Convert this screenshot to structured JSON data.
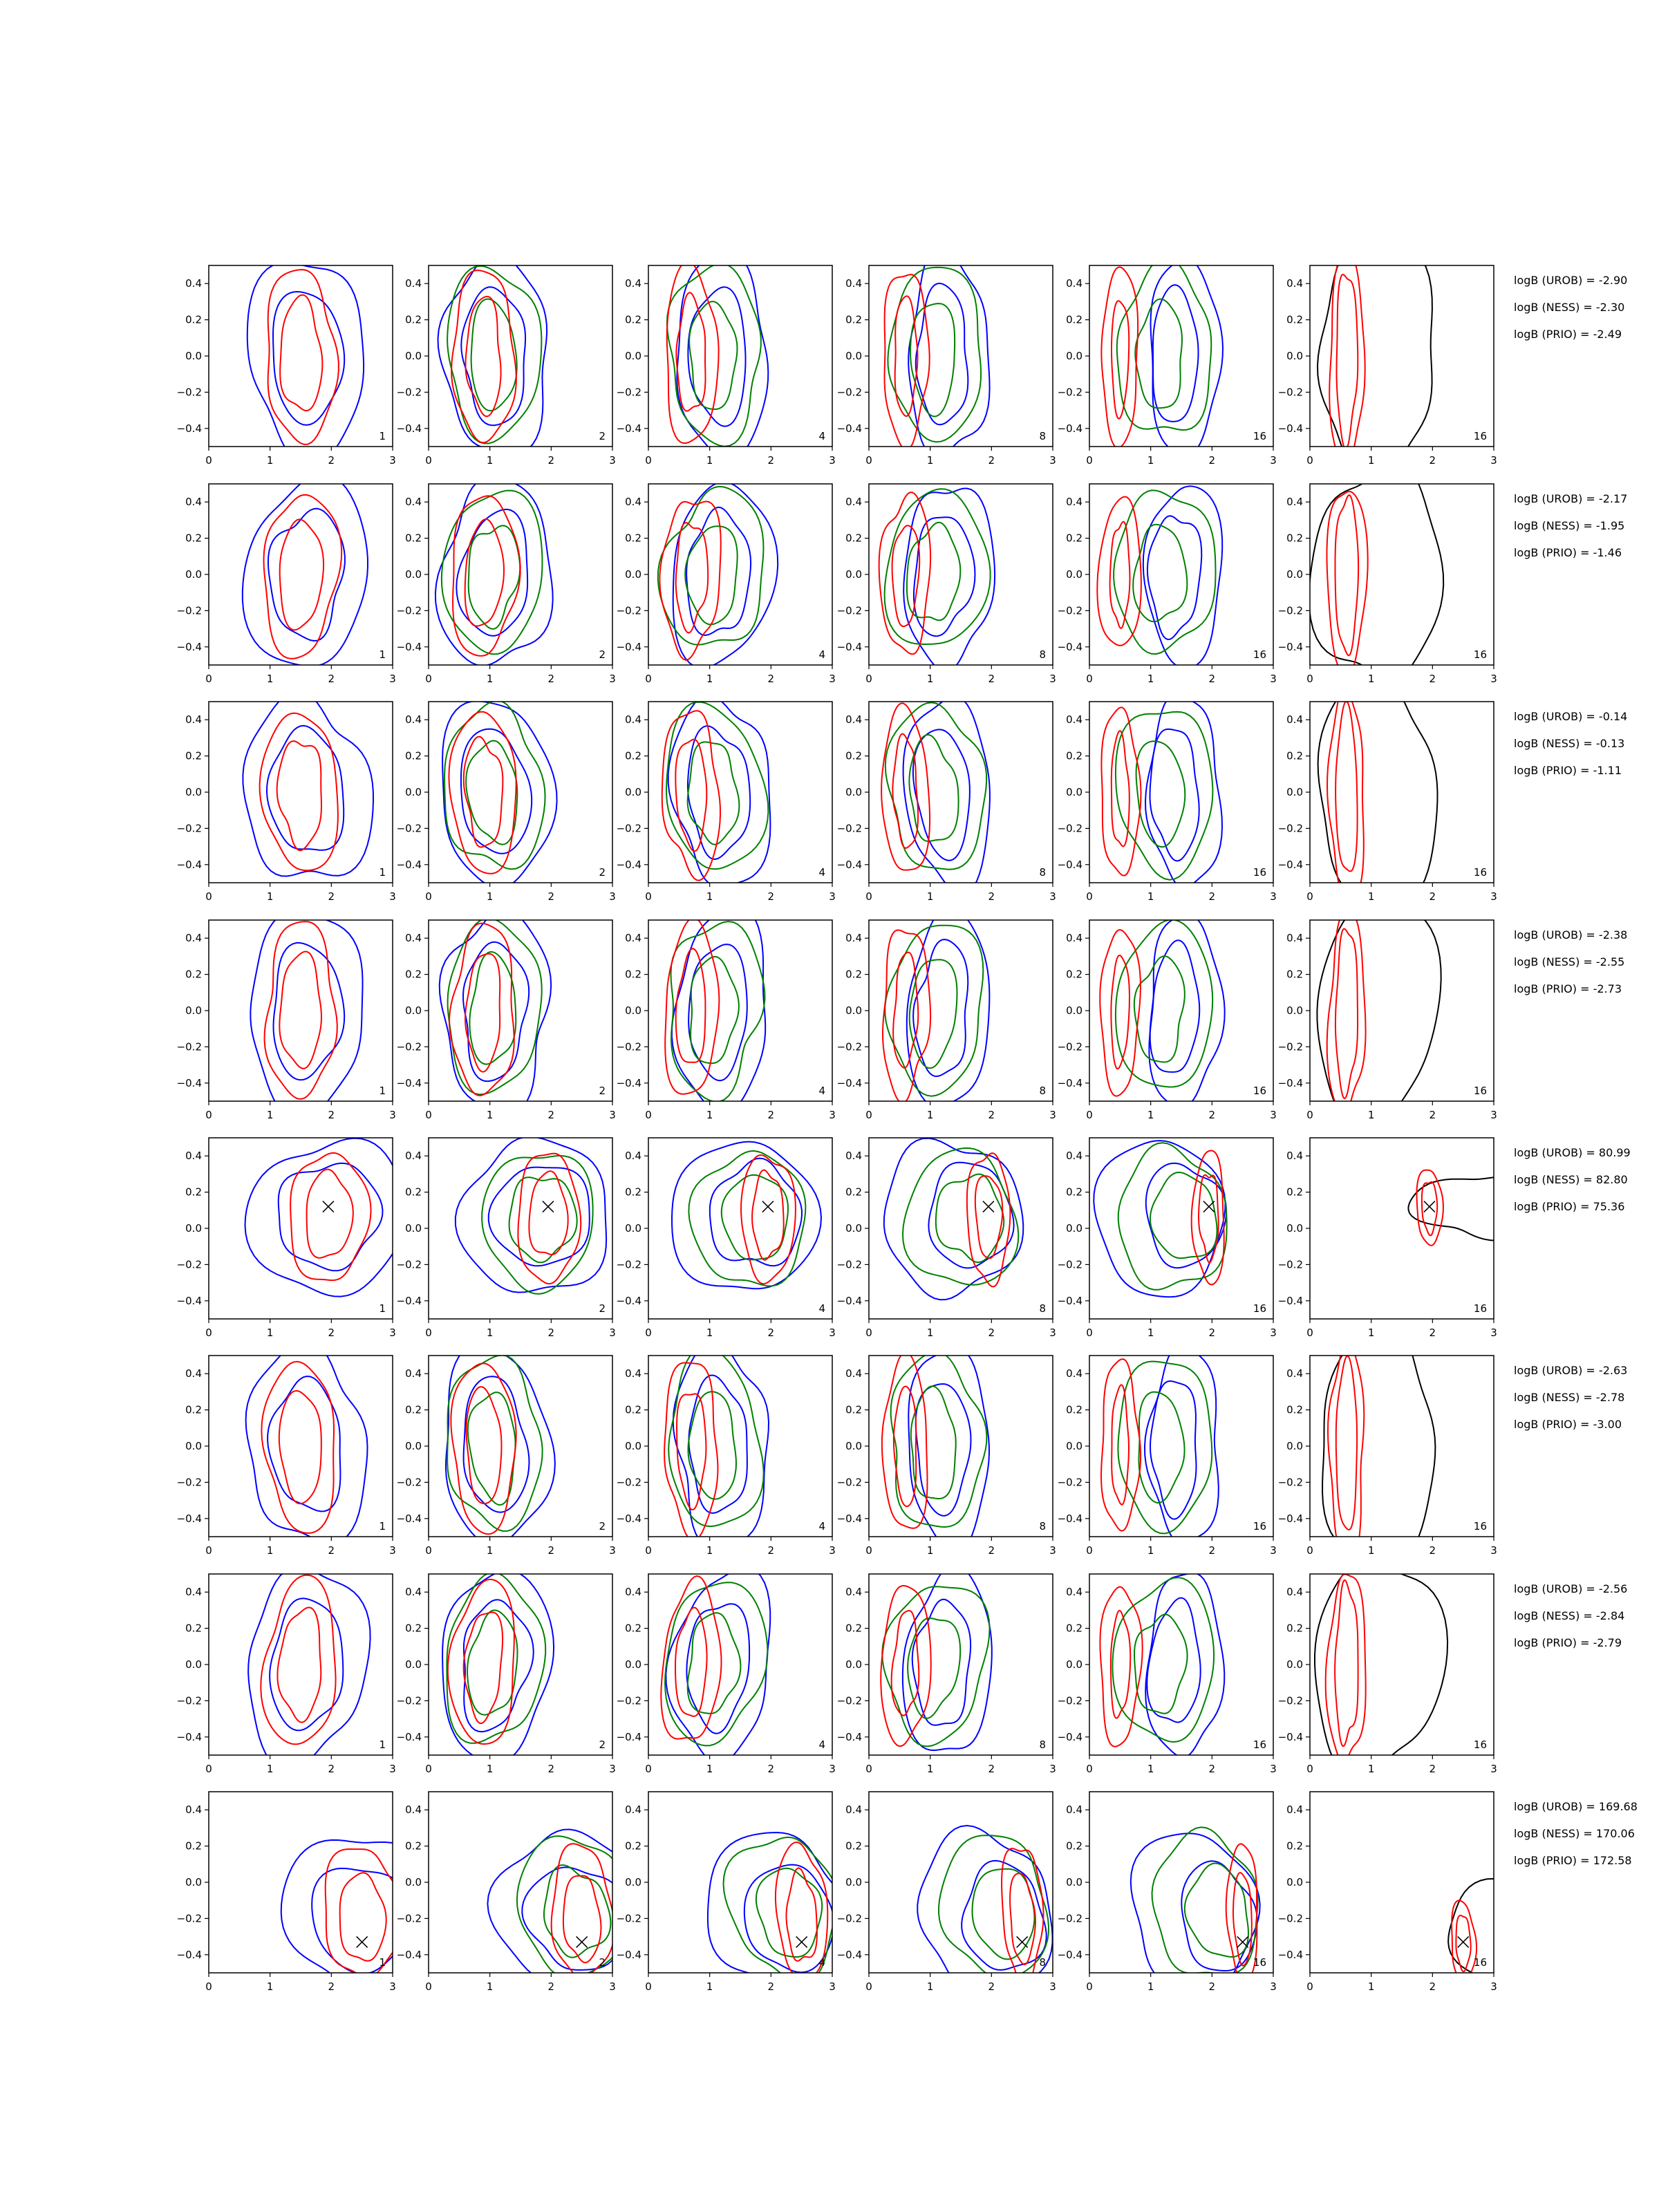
{
  "chart_data": {
    "type": "contour",
    "grid": false,
    "layout": {
      "rows": 8,
      "columns": 6
    },
    "xlim": [
      0,
      3
    ],
    "ylim": [
      -0.5,
      0.5
    ],
    "xticks": [
      "0",
      "1",
      "2",
      "3"
    ],
    "yticks": [
      "0.4",
      "0.2",
      "0.0",
      "−0.2",
      "−0.4"
    ],
    "colors": {
      "blue": "#0000ff",
      "red": "#ff0000",
      "green": "#008000",
      "black": "#000000"
    },
    "panel_labels": [
      "1",
      "2",
      "4",
      "8",
      "16",
      "16"
    ],
    "rows": [
      {
        "stats": [
          "logB (UROB) = -2.90",
          "logB (NESS) = -2.30",
          "logB (PRIO) = -2.49"
        ],
        "truth": null
      },
      {
        "stats": [
          "logB (UROB) = -2.17",
          "logB (NESS) = -1.95",
          "logB (PRIO) = -1.46"
        ],
        "truth": null
      },
      {
        "stats": [
          "logB (UROB) = -0.14",
          "logB (NESS) = -0.13",
          "logB (PRIO) = -1.11"
        ],
        "truth": null
      },
      {
        "stats": [
          "logB (UROB) = -2.38",
          "logB (NESS) = -2.55",
          "logB (PRIO) = -2.73"
        ],
        "truth": null
      },
      {
        "stats": [
          "logB (UROB) = 80.99",
          "logB (NESS) = 82.80",
          "logB (PRIO) = 75.36"
        ],
        "truth": [
          1.95,
          0.12
        ]
      },
      {
        "stats": [
          "logB (UROB) = -2.63",
          "logB (NESS) = -2.78",
          "logB (PRIO) = -3.00"
        ],
        "truth": null
      },
      {
        "stats": [
          "logB (UROB) = -2.56",
          "logB (NESS) = -2.84",
          "logB (PRIO) = -2.79"
        ],
        "truth": null
      },
      {
        "stats": [
          "logB (UROB) = 169.68",
          "logB (NESS) = 170.06",
          "logB (PRIO) = 172.58"
        ],
        "truth": [
          2.5,
          -0.33
        ]
      }
    ]
  }
}
